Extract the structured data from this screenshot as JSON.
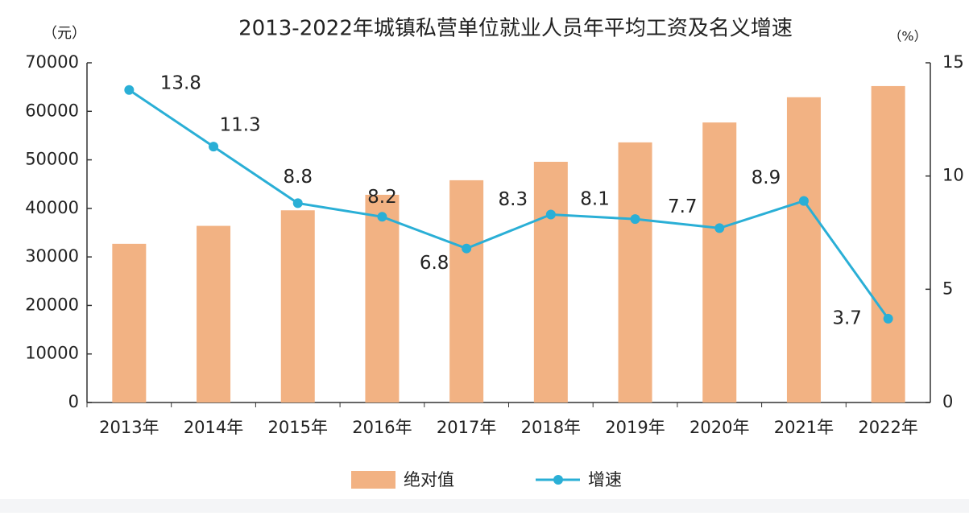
{
  "chart_data": {
    "type": "combo",
    "title": "2013-2022年城镇私营单位就业人员年平均工资及名义增速",
    "y_unit": "（元）",
    "y2_unit": "（%）",
    "categories": [
      "2013年",
      "2014年",
      "2015年",
      "2016年",
      "2017年",
      "2018年",
      "2019年",
      "2020年",
      "2021年",
      "2022年"
    ],
    "series": [
      {
        "name": "绝对值",
        "type": "bar",
        "color": "#f2b283",
        "values": [
          32700,
          36400,
          39600,
          42800,
          45800,
          49600,
          53600,
          57700,
          62900,
          65200
        ]
      },
      {
        "name": "增速",
        "type": "line",
        "axis": "y2",
        "color": "#2aafd6",
        "values": [
          13.8,
          11.3,
          8.8,
          8.2,
          6.8,
          8.3,
          8.1,
          7.7,
          8.9,
          3.7
        ]
      }
    ],
    "ylim": [
      0,
      70000
    ],
    "yticks": [
      0,
      10000,
      20000,
      30000,
      40000,
      50000,
      60000,
      70000
    ],
    "y2lim": [
      0,
      15
    ],
    "y2ticks": [
      0,
      5,
      10,
      15
    ],
    "grid": false
  }
}
